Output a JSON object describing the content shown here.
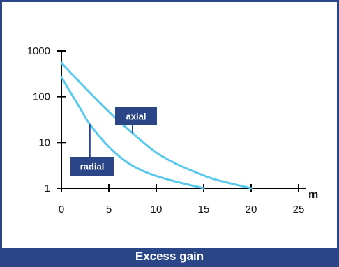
{
  "colors": {
    "frame": "#2a4686",
    "curve": "#5bc8ec",
    "axis": "#000000",
    "callout_bg": "#2a4686",
    "callout_text": "#ffffff"
  },
  "caption": "Excess gain",
  "chart_data": {
    "type": "line",
    "title": "",
    "xlabel": "m",
    "ylabel": "",
    "xlim": [
      0,
      25
    ],
    "ylim": [
      1,
      1000
    ],
    "yscale": "log",
    "grid": false,
    "x_ticks": [
      0,
      5,
      10,
      15,
      20,
      25
    ],
    "y_ticks": [
      1,
      10,
      100,
      1000
    ],
    "x_tick_labels": [
      "0",
      "5",
      "10",
      "15",
      "20",
      "25"
    ],
    "y_tick_labels": [
      "1",
      "10",
      "100",
      "1000"
    ],
    "series": [
      {
        "name": "axial",
        "x": [
          0,
          1,
          2,
          4,
          6,
          8,
          10,
          12,
          14,
          16,
          18,
          20
        ],
        "y": [
          550,
          330,
          200,
          75,
          30,
          13,
          6,
          3.5,
          2.3,
          1.6,
          1.25,
          1
        ]
      },
      {
        "name": "radial",
        "x": [
          0,
          1,
          2,
          3,
          5,
          7,
          9,
          11,
          13,
          15
        ],
        "y": [
          270,
          120,
          55,
          25,
          8,
          3.6,
          2.2,
          1.6,
          1.25,
          1
        ]
      }
    ],
    "annotations": [
      {
        "text": "axial",
        "series": "axial",
        "at_x": 7.5
      },
      {
        "text": "radial",
        "series": "radial",
        "at_x": 3.0
      }
    ]
  }
}
